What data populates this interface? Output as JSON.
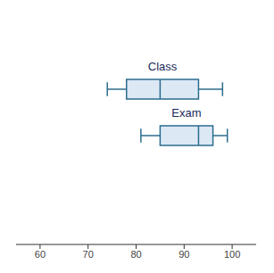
{
  "chart_data": {
    "type": "box",
    "categories": [
      "Class",
      "Exam"
    ],
    "values": [
      {
        "min": 74,
        "q1": 78,
        "median": 85,
        "q3": 93,
        "max": 98
      },
      {
        "min": 81,
        "q1": 85,
        "median": 93,
        "q3": 96,
        "max": 99
      }
    ],
    "color": "#dce9f5",
    "xlim": [
      55,
      105
    ],
    "xticks": [
      60,
      70,
      80,
      90,
      100
    ],
    "grid": false,
    "tick_labels": "x"
  }
}
